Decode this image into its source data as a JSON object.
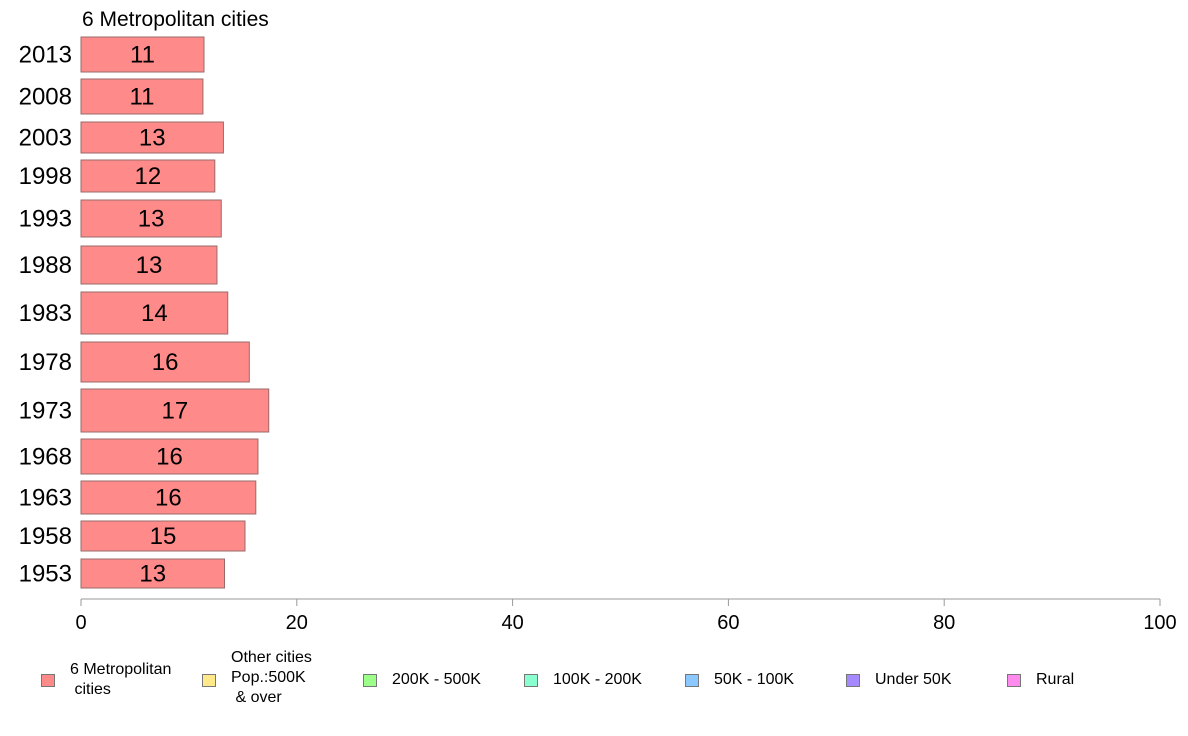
{
  "chart_data": {
    "type": "bar",
    "orientation": "horizontal",
    "title": "6 Metropolitan cities",
    "categories": [
      "2013",
      "2008",
      "2003",
      "1998",
      "1993",
      "1988",
      "1983",
      "1978",
      "1973",
      "1968",
      "1963",
      "1958",
      "1953"
    ],
    "series": [
      {
        "name": "6 Metropolitan\n cities",
        "color": "#ff8a8a",
        "values": [
          11.4,
          11.3,
          13.2,
          12.4,
          13.0,
          12.6,
          13.6,
          15.6,
          17.4,
          16.4,
          16.2,
          15.2,
          13.3
        ],
        "labels": [
          "11",
          "11",
          "13",
          "12",
          "13",
          "13",
          "14",
          "16",
          "17",
          "16",
          "16",
          "15",
          "13"
        ]
      }
    ],
    "xlim": [
      0,
      100
    ],
    "xticks": [
      "0",
      "20",
      "40",
      "60",
      "80",
      "100"
    ],
    "legend": [
      {
        "label": "6 Metropolitan\n cities",
        "color": "#ff8a8a"
      },
      {
        "label": "Other cities\nPop.:500K\n & over",
        "color": "#ffe98a"
      },
      {
        "label": "200K - 500K",
        "color": "#9bff8a"
      },
      {
        "label": "100K - 200K",
        "color": "#8affd0"
      },
      {
        "label": "50K - 100K",
        "color": "#8ac8ff"
      },
      {
        "label": "Under 50K",
        "color": "#a58aff"
      },
      {
        "label": "Rural",
        "color": "#ff8aed"
      }
    ],
    "legend_position": "bottom",
    "grid": false
  }
}
